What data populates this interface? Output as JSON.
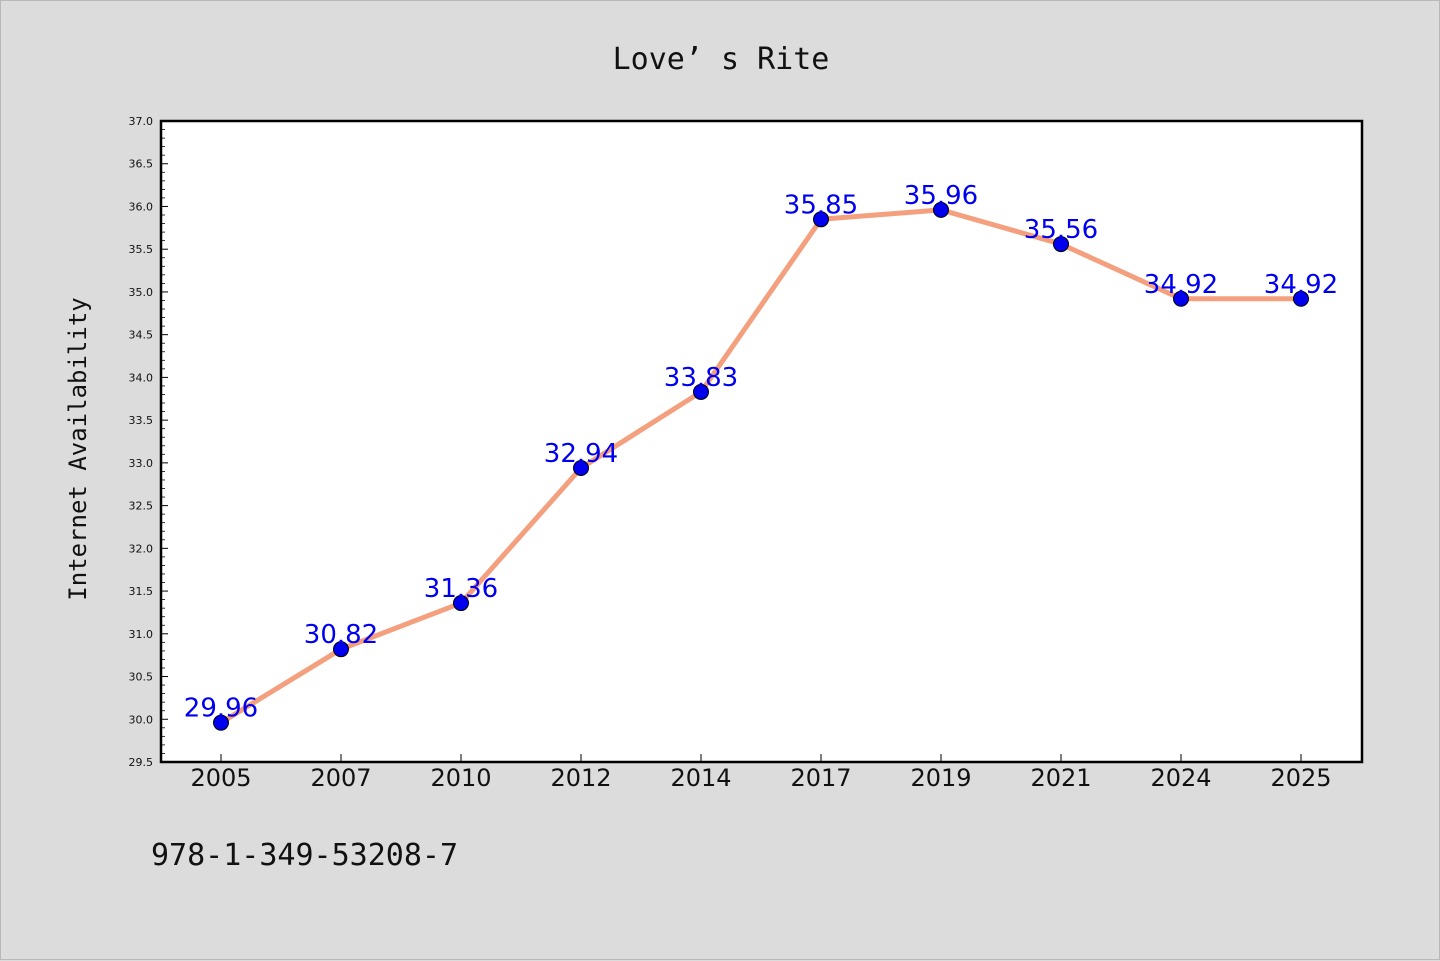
{
  "chart_data": {
    "type": "line",
    "title": "Love’ s Rite",
    "xlabel": "",
    "ylabel": "Internet Availability",
    "categories": [
      "2005",
      "2007",
      "2010",
      "2012",
      "2014",
      "2017",
      "2019",
      "2021",
      "2024",
      "2025"
    ],
    "series": [
      {
        "values": [
          29.96,
          30.82,
          31.36,
          32.94,
          33.83,
          35.85,
          35.96,
          35.56,
          34.92,
          34.92
        ],
        "labels": [
          "29.96",
          "30.82",
          "31.36",
          "32.94",
          "33.83",
          "35.85",
          "35.96",
          "35.56",
          "34.92",
          "34.92"
        ],
        "line_color": "#f4a07e",
        "marker_color": "#0000ee"
      }
    ],
    "ylim": [
      29.5,
      37.0
    ],
    "yticks": [
      "29.5",
      "30.0",
      "30.5",
      "31.0",
      "31.5",
      "32.0",
      "32.5",
      "33.0",
      "33.5",
      "34.0",
      "34.5",
      "35.0",
      "35.5",
      "36.0",
      "36.5",
      "37.0"
    ],
    "grid": false,
    "legend": "none"
  },
  "footer_text": "978-1-349-53208-7"
}
